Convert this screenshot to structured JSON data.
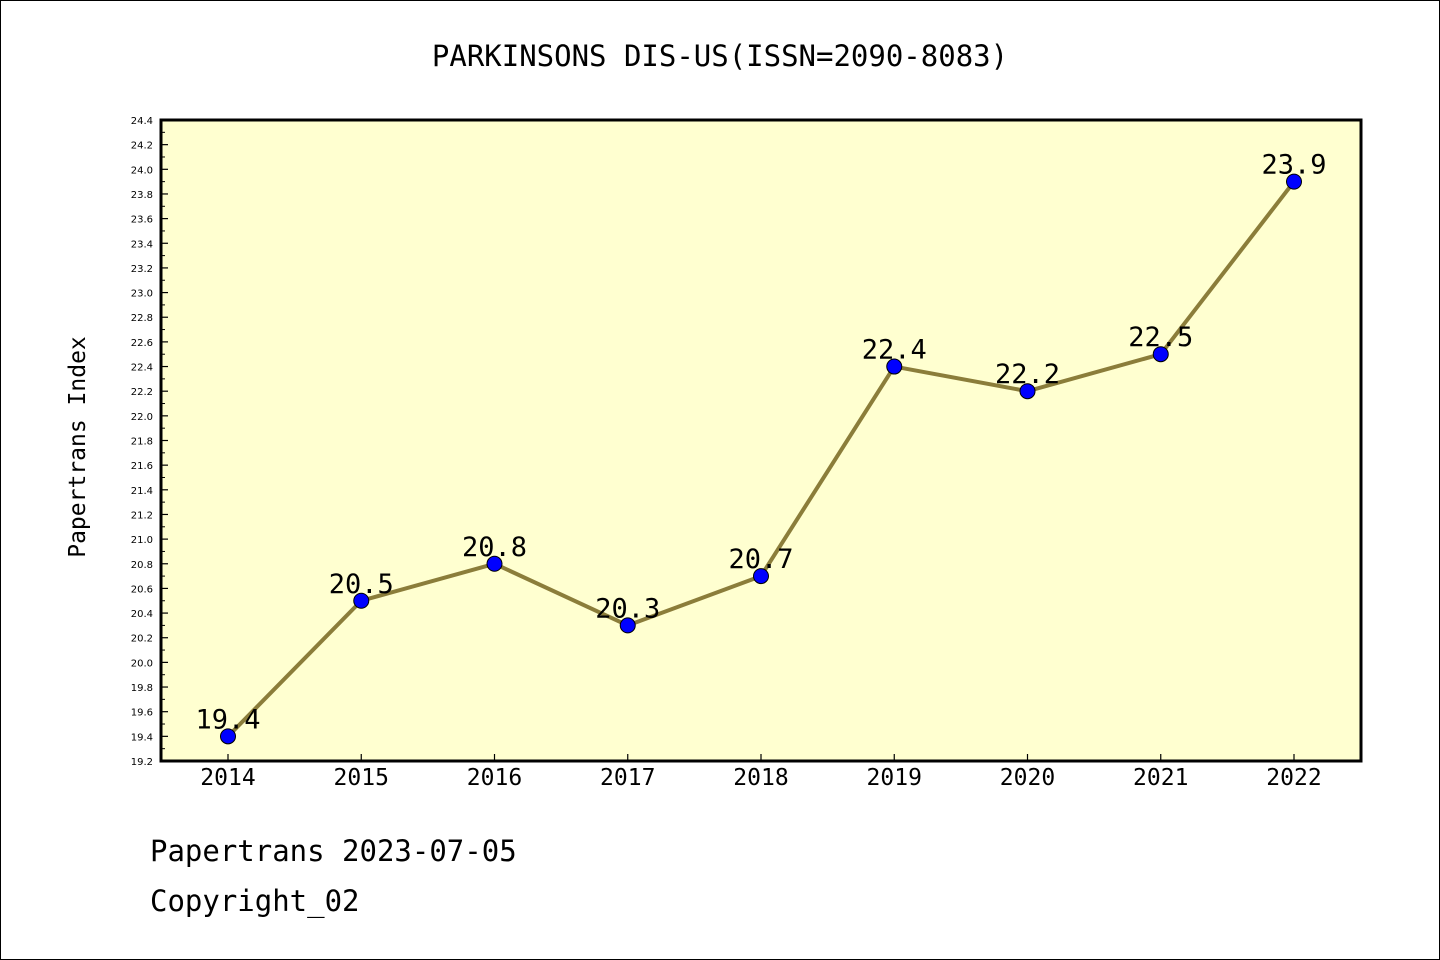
{
  "chart_data": {
    "type": "line",
    "title": "PARKINSONS DIS-US(ISSN=2090-8083)",
    "xlabel": "",
    "ylabel": "Papertrans Index",
    "categories": [
      "2014",
      "2015",
      "2016",
      "2017",
      "2018",
      "2019",
      "2020",
      "2021",
      "2022"
    ],
    "series": [
      {
        "values": [
          19.4,
          20.5,
          20.8,
          20.3,
          20.7,
          22.4,
          22.2,
          22.5,
          23.9
        ],
        "labels": [
          "19.4",
          "20.5",
          "20.8",
          "20.3",
          "20.7",
          "22.4",
          "22.2",
          "22.5",
          "23.9"
        ]
      }
    ],
    "ylim": [
      19.2,
      24.4
    ],
    "yticks": [
      "19.2",
      "19.4",
      "19.6",
      "19.8",
      "20.0",
      "20.2",
      "20.4",
      "20.6",
      "20.8",
      "21.0",
      "21.2",
      "21.4",
      "21.6",
      "21.8",
      "22.0",
      "22.2",
      "22.4",
      "22.6",
      "22.8",
      "23.0",
      "23.2",
      "23.4",
      "23.6",
      "23.8",
      "24.0",
      "24.2",
      "24.4"
    ],
    "grid": false,
    "colors": {
      "plot_background": "#ffffd0",
      "line": "#8b7d3a",
      "marker": "#0000ff"
    }
  },
  "footer": {
    "date_line": "Papertrans 2023-07-05",
    "copyright": "Copyright_02"
  }
}
